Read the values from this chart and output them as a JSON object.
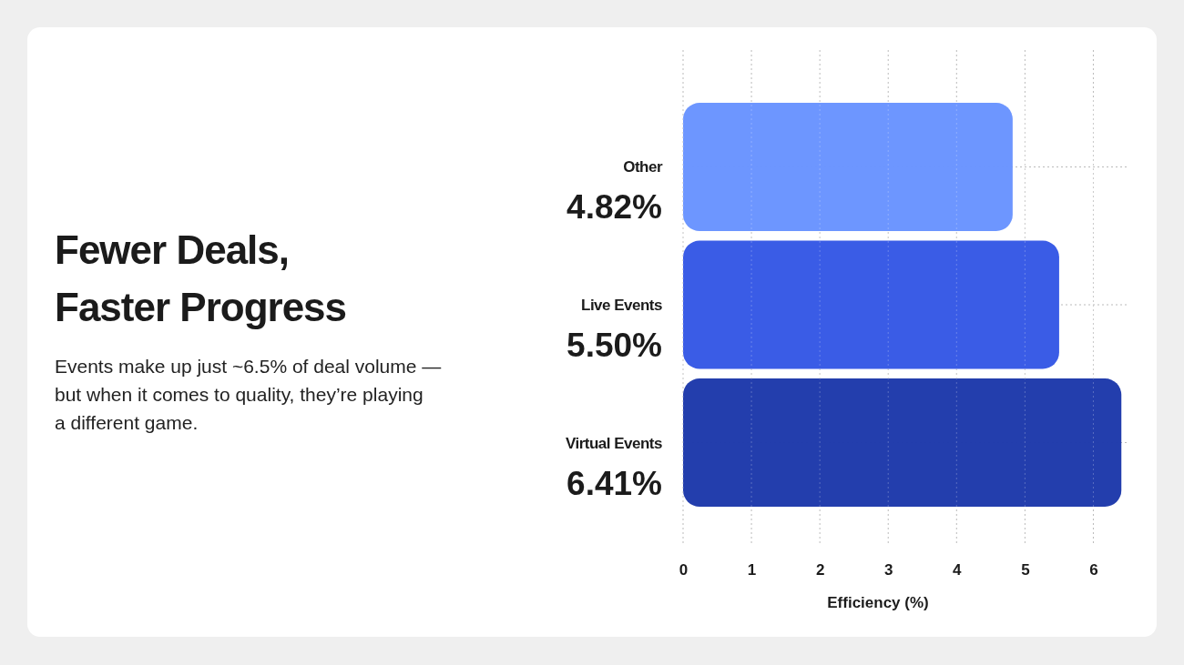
{
  "chart_data": {
    "type": "bar",
    "orientation": "horizontal",
    "title": "Fewer Deals,\nFaster Progress",
    "subtitle": "Events make up just ~6.5% of deal volume —\nbut when it comes to quality, they’re playing\na different game.",
    "xlabel": "Efficiency (%)",
    "categories": [
      "Other",
      "Live Events",
      "Virtual Events"
    ],
    "values": [
      4.82,
      5.5,
      6.41
    ],
    "value_labels": [
      "4.82%",
      "5.50%",
      "6.41%"
    ],
    "colors": [
      "#6a94ff",
      "#3659e6",
      "#1f3aab"
    ],
    "xlim": [
      0,
      6.5
    ],
    "xticks": [
      0,
      1,
      2,
      3,
      4,
      5,
      6
    ],
    "grid": true
  }
}
